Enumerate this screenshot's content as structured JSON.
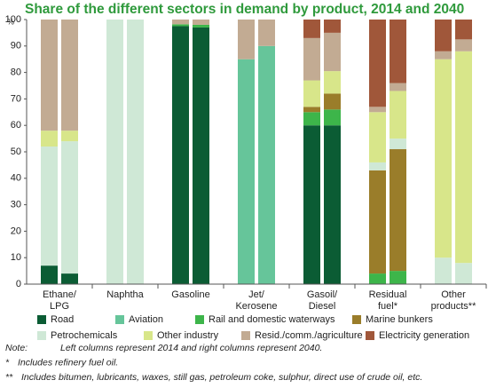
{
  "chart_data": {
    "type": "stacked-bar-pairs",
    "title": "Share of the different sectors in demand by product, 2014 and 2040",
    "y_label": "%",
    "categories": [
      [
        "Ethane/",
        "LPG"
      ],
      [
        "Naphtha"
      ],
      [
        "Gasoline"
      ],
      [
        "Jet/",
        "Kerosene"
      ],
      [
        "Gasoil/",
        "Diesel"
      ],
      [
        "Residual",
        "fuel*"
      ],
      [
        "Other",
        "products**"
      ]
    ],
    "series": [
      {
        "name": "Road",
        "color": "#0b5c34",
        "values": [
          [
            7,
            4
          ],
          [
            0,
            0
          ],
          [
            97.5,
            97
          ],
          [
            0,
            0
          ],
          [
            60,
            60
          ],
          [
            0,
            0
          ],
          [
            0,
            0
          ]
        ]
      },
      {
        "name": "Aviation",
        "color": "#66c59a",
        "values": [
          [
            0,
            0
          ],
          [
            0,
            0
          ],
          [
            0,
            0
          ],
          [
            85,
            90
          ],
          [
            0,
            0
          ],
          [
            0,
            0
          ],
          [
            0,
            0
          ]
        ]
      },
      {
        "name": "Rail and domestic waterways",
        "color": "#3db54a",
        "values": [
          [
            0,
            0
          ],
          [
            0,
            0
          ],
          [
            0.7,
            1
          ],
          [
            0,
            0
          ],
          [
            5,
            6
          ],
          [
            4,
            5
          ],
          [
            0,
            0
          ]
        ]
      },
      {
        "name": "Marine bunkers",
        "color": "#9a7d2a",
        "values": [
          [
            0,
            0
          ],
          [
            0,
            0
          ],
          [
            0,
            0
          ],
          [
            0,
            0
          ],
          [
            2,
            6
          ],
          [
            39,
            46
          ],
          [
            0,
            0
          ]
        ]
      },
      {
        "name": "Petrochemicals",
        "color": "#cfe8d6",
        "values": [
          [
            45,
            50
          ],
          [
            100,
            100
          ],
          [
            0,
            0
          ],
          [
            0,
            0
          ],
          [
            0,
            0
          ],
          [
            3,
            4
          ],
          [
            10,
            8
          ]
        ]
      },
      {
        "name": "Other industry",
        "color": "#d8e68a",
        "values": [
          [
            6,
            4
          ],
          [
            0,
            0
          ],
          [
            0,
            0
          ],
          [
            0,
            0
          ],
          [
            10,
            8.5
          ],
          [
            19,
            18
          ],
          [
            75,
            80
          ]
        ]
      },
      {
        "name": "Resid./comm./agriculture",
        "color": "#c2ab93",
        "values": [
          [
            42,
            42
          ],
          [
            0,
            0
          ],
          [
            1.8,
            2
          ],
          [
            15,
            10
          ],
          [
            16,
            14.5
          ],
          [
            2,
            3
          ],
          [
            3,
            4.5
          ]
        ]
      },
      {
        "name": "Electricity generation",
        "color": "#a0573a",
        "values": [
          [
            0,
            0
          ],
          [
            0,
            0
          ],
          [
            0,
            0
          ],
          [
            0,
            0
          ],
          [
            7,
            5
          ],
          [
            33,
            24
          ],
          [
            12,
            7.5
          ]
        ]
      }
    ],
    "ylim": [
      0,
      100
    ],
    "yticks": [
      0,
      10,
      20,
      30,
      40,
      50,
      60,
      70,
      80,
      90,
      100
    ],
    "notes": [
      {
        "marker": "Note:",
        "text": "Left columns represent 2014 and right columns represent 2040."
      },
      {
        "marker": "*",
        "text": "Includes refinery fuel oil."
      },
      {
        "marker": "**",
        "text": "Includes bitumen, lubricants, waxes, still gas, petroleum coke, sulphur, direct use of crude oil, etc."
      }
    ]
  }
}
